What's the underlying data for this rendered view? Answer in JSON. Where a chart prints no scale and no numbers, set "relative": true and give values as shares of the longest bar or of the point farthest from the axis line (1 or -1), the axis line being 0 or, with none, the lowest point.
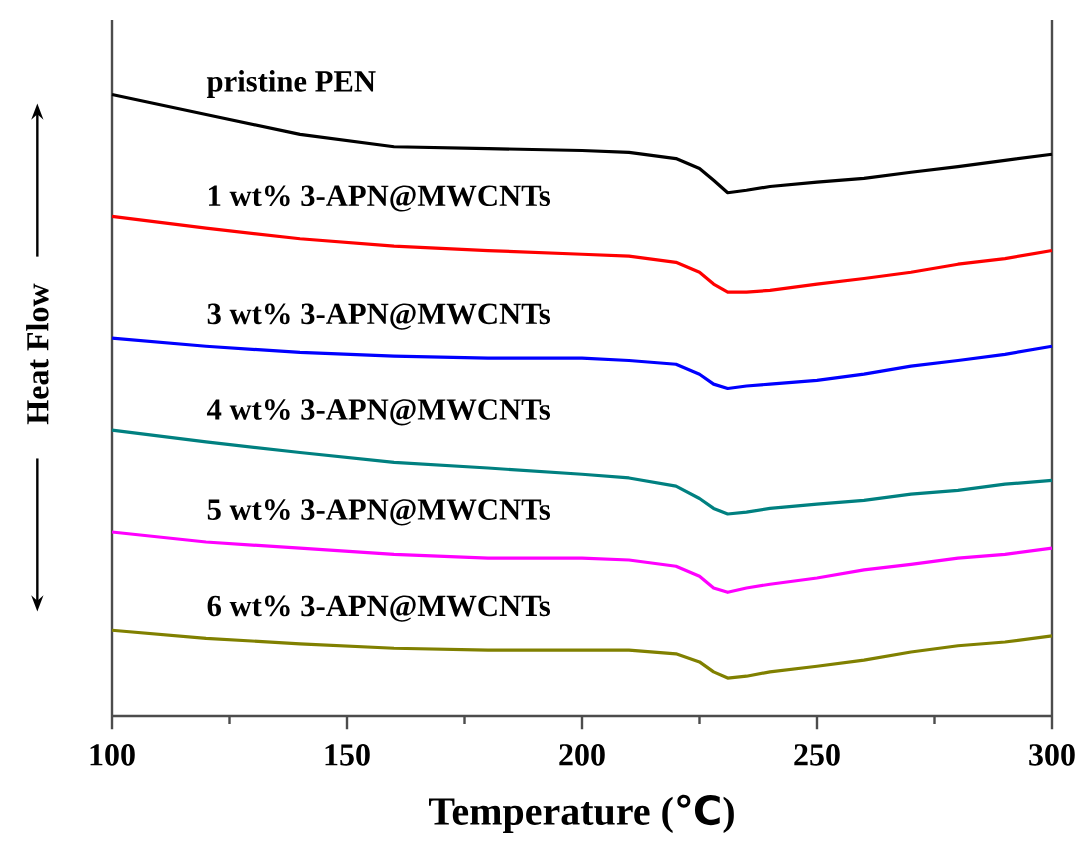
{
  "chart_data": {
    "type": "line",
    "relative": true,
    "xlabel": "Temperature (℃)",
    "ylabel": "Heat Flow",
    "xlim": [
      100,
      300
    ],
    "xticks": [
      100,
      150,
      200,
      250,
      300
    ],
    "x": [
      100,
      120,
      140,
      160,
      180,
      200,
      210,
      220,
      225,
      228,
      231,
      235,
      240,
      250,
      260,
      270,
      280,
      290,
      300
    ],
    "series": [
      {
        "name": "pristine PEN",
        "color": "#000000",
        "values": [
          1.0,
          0.968,
          0.936,
          0.916,
          0.913,
          0.91,
          0.907,
          0.897,
          0.881,
          0.862,
          0.842,
          0.846,
          0.852,
          0.859,
          0.865,
          0.875,
          0.884,
          0.894,
          0.904
        ]
      },
      {
        "name": "1 wt% 3-APN@MWCNTs",
        "color": "#ff0000",
        "values": [
          0.804,
          0.785,
          0.768,
          0.756,
          0.749,
          0.743,
          0.74,
          0.73,
          0.714,
          0.695,
          0.682,
          0.682,
          0.685,
          0.695,
          0.704,
          0.714,
          0.727,
          0.736,
          0.749
        ]
      },
      {
        "name": "3 wt% 3-APN@MWCNTs",
        "color": "#0000ff",
        "values": [
          0.608,
          0.595,
          0.585,
          0.579,
          0.576,
          0.576,
          0.572,
          0.566,
          0.55,
          0.534,
          0.527,
          0.531,
          0.534,
          0.54,
          0.55,
          0.563,
          0.572,
          0.582,
          0.595
        ]
      },
      {
        "name": "4 wt% 3-APN@MWCNTs",
        "color": "#008080",
        "values": [
          0.46,
          0.441,
          0.424,
          0.408,
          0.399,
          0.389,
          0.383,
          0.37,
          0.35,
          0.334,
          0.325,
          0.328,
          0.334,
          0.341,
          0.347,
          0.357,
          0.363,
          0.373,
          0.379
        ]
      },
      {
        "name": "5 wt% 3-APN@MWCNTs",
        "color": "#ff00ff",
        "values": [
          0.296,
          0.28,
          0.27,
          0.26,
          0.254,
          0.254,
          0.251,
          0.241,
          0.225,
          0.206,
          0.199,
          0.206,
          0.212,
          0.222,
          0.235,
          0.244,
          0.254,
          0.26,
          0.27
        ]
      },
      {
        "name": "6 wt% 3-APN@MWCNTs",
        "color": "#808000",
        "values": [
          0.138,
          0.125,
          0.116,
          0.109,
          0.106,
          0.106,
          0.106,
          0.1,
          0.087,
          0.071,
          0.061,
          0.064,
          0.071,
          0.08,
          0.09,
          0.103,
          0.113,
          0.119,
          0.129
        ]
      }
    ]
  }
}
